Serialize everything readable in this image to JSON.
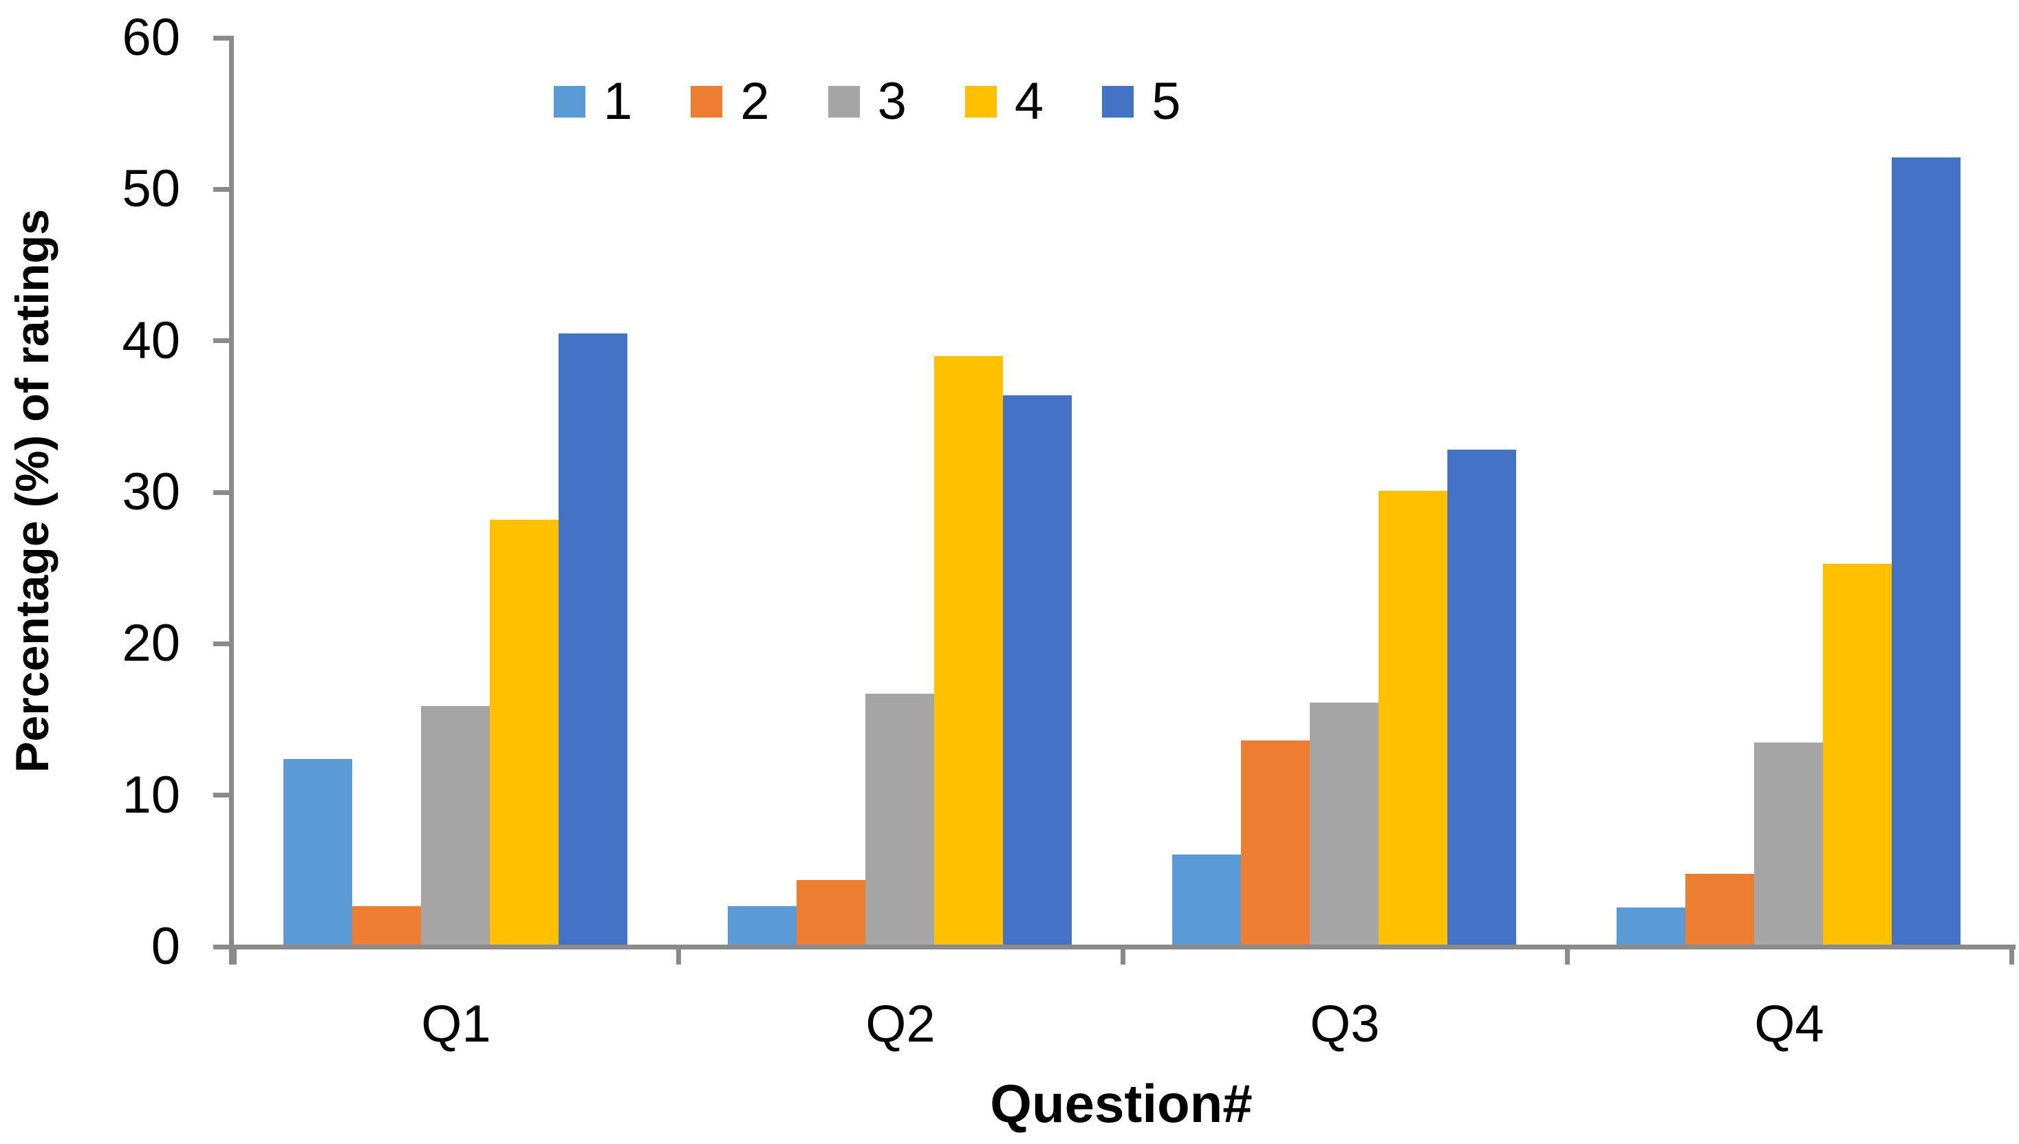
{
  "chart_data": {
    "type": "bar",
    "title": "",
    "xlabel": "Question#",
    "ylabel": "Percentage (%) of ratings",
    "categories": [
      "Q1",
      "Q2",
      "Q3",
      "Q4"
    ],
    "series": [
      {
        "name": "1",
        "color": "#5B9BD5",
        "values": [
          12.4,
          2.7,
          6.1,
          2.6
        ]
      },
      {
        "name": "2",
        "color": "#ED7D31",
        "values": [
          2.7,
          4.4,
          13.6,
          4.8
        ]
      },
      {
        "name": "3",
        "color": "#A5A5A5",
        "values": [
          15.9,
          16.7,
          16.1,
          13.5
        ]
      },
      {
        "name": "4",
        "color": "#FFC000",
        "values": [
          28.2,
          39.0,
          30.1,
          25.3
        ]
      },
      {
        "name": "5",
        "color": "#4472C4",
        "values": [
          40.5,
          36.4,
          32.8,
          52.1
        ]
      }
    ],
    "ylim": [
      0,
      60
    ],
    "yticks": [
      0,
      10,
      20,
      30,
      40,
      50,
      60
    ],
    "grid": false,
    "legend_position": "top",
    "axis_color": "#8A8A8A",
    "text_color": "#000000",
    "background_color": "#FFFFFF"
  }
}
